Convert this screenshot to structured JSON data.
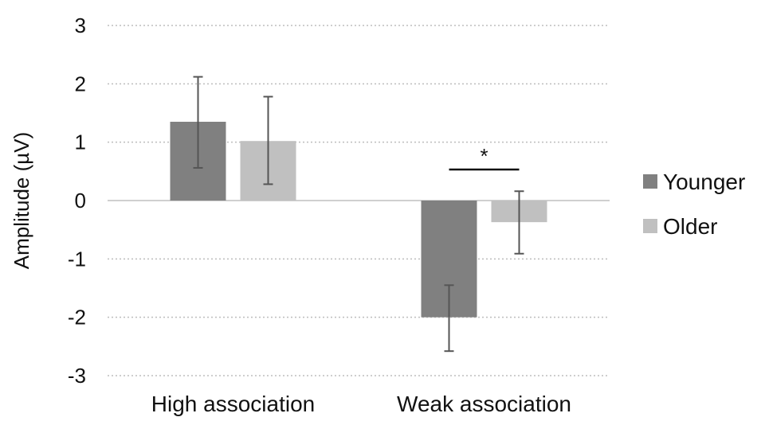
{
  "chart_data": {
    "type": "bar",
    "title": "",
    "xlabel": "",
    "ylabel": "Amplitude  (µV)",
    "ylim": [
      -3,
      3
    ],
    "yticks": [
      3,
      2,
      1,
      0,
      -1,
      -2,
      -3
    ],
    "ytick_labels": [
      "3",
      "2",
      "1",
      "0",
      "-1",
      "-2",
      "-3"
    ],
    "grid": "horizontal dotted",
    "legend_position": "right",
    "categories": [
      "High association",
      "Weak association"
    ],
    "series": [
      {
        "name": "Younger",
        "color": "#808080",
        "values": [
          1.35,
          -2.0
        ],
        "error": [
          [
            0.56,
            2.12
          ],
          [
            -2.58,
            -1.45
          ]
        ]
      },
      {
        "name": "Older",
        "color": "#c0c0c0",
        "values": [
          1.02,
          -0.37
        ],
        "error": [
          [
            0.28,
            1.78
          ],
          [
            -0.91,
            0.16
          ]
        ]
      }
    ],
    "annotations": [
      {
        "text": "*",
        "category": "Weak association",
        "between": [
          "Younger",
          "Older"
        ]
      }
    ]
  }
}
